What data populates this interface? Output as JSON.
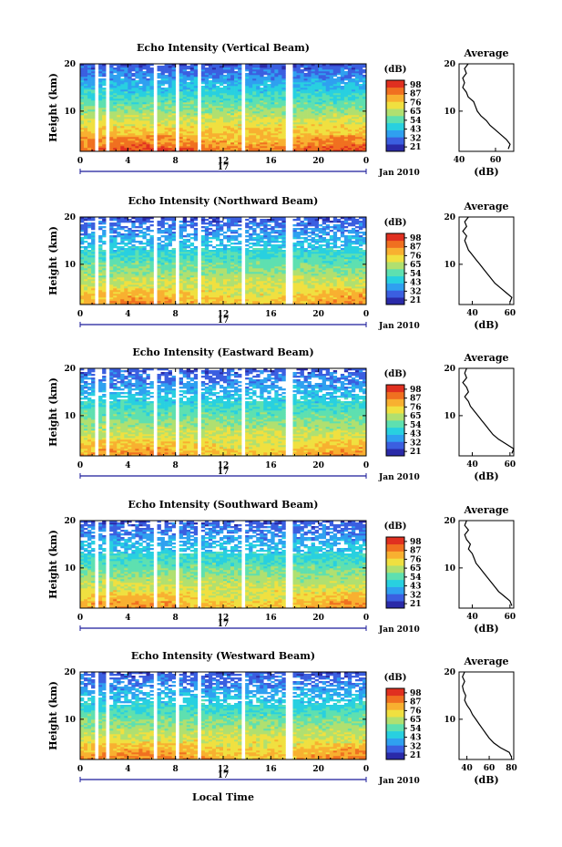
{
  "figure": {
    "xlabel": "Local Time",
    "date_label": "Jan 2010",
    "day_label": "17",
    "ylabel": "Height (km)",
    "colorbar_unit": "(dB)",
    "colorbar_ticks": [
      "21",
      "32",
      "43",
      "54",
      "65",
      "76",
      "87",
      "98"
    ],
    "colormap": [
      "#2a2aa8",
      "#3b5fe0",
      "#2fa0f0",
      "#28d0e0",
      "#5ee0b0",
      "#b0e070",
      "#f0e040",
      "#f8b030",
      "#f07020",
      "#e03020"
    ],
    "gap_color": "#ffffff"
  },
  "chart_data": [
    {
      "type": "heatmap",
      "title": "Echo Intensity (Vertical Beam)",
      "xlabel": "",
      "ylabel": "Height (km)",
      "xlim": [
        0,
        24
      ],
      "ylim": [
        1.5,
        20
      ],
      "x_ticks": [
        "0",
        "4",
        "8",
        "12",
        "16",
        "20",
        "0"
      ],
      "y_ticks": [
        "10",
        "20"
      ],
      "colorbar_range": [
        21,
        98
      ],
      "gaps_hours": [
        1.3,
        2.4,
        6.2,
        8.3,
        10.1,
        13.7,
        17.3,
        17.6
      ],
      "profile": {
        "title": "Average",
        "xlabel": "(dB)",
        "x_ticks": [
          "40",
          "60"
        ],
        "xlim": [
          40,
          70
        ],
        "heights_km": [
          2,
          3,
          4,
          5,
          6,
          7,
          8,
          9,
          10,
          11,
          12,
          13,
          14,
          15,
          16,
          17,
          18,
          19,
          20
        ],
        "values_db": [
          67,
          68,
          66,
          63,
          60,
          57,
          55,
          52,
          50,
          49,
          48,
          45,
          44,
          42,
          43,
          42,
          44,
          43,
          45
        ]
      }
    },
    {
      "type": "heatmap",
      "title": "Echo Intensity (Northward Beam)",
      "xlabel": "",
      "ylabel": "Height (km)",
      "xlim": [
        0,
        24
      ],
      "ylim": [
        1.5,
        20
      ],
      "x_ticks": [
        "0",
        "4",
        "8",
        "12",
        "16",
        "20",
        "0"
      ],
      "y_ticks": [
        "10",
        "20"
      ],
      "colorbar_range": [
        21,
        98
      ],
      "gaps_hours": [
        1.3,
        2.4,
        6.2,
        8.3,
        10.1,
        13.7,
        17.3,
        17.6
      ],
      "profile": {
        "title": "Average",
        "xlabel": "(dB)",
        "x_ticks": [
          "40",
          "60"
        ],
        "xlim": [
          33,
          62
        ],
        "heights_km": [
          2,
          3,
          4,
          5,
          6,
          7,
          8,
          9,
          10,
          11,
          12,
          13,
          14,
          15,
          16,
          17,
          18,
          19,
          20
        ],
        "values_db": [
          60,
          61,
          58,
          55,
          52,
          50,
          48,
          46,
          44,
          42,
          40,
          38,
          37,
          36,
          37,
          35,
          37,
          36,
          38
        ]
      }
    },
    {
      "type": "heatmap",
      "title": "Echo Intensity (Eastward Beam)",
      "xlabel": "",
      "ylabel": "Height (km)",
      "xlim": [
        0,
        24
      ],
      "ylim": [
        1.5,
        20
      ],
      "x_ticks": [
        "0",
        "4",
        "8",
        "12",
        "16",
        "20",
        "0"
      ],
      "y_ticks": [
        "10",
        "20"
      ],
      "colorbar_range": [
        21,
        98
      ],
      "gaps_hours": [
        1.3,
        2.4,
        6.2,
        8.3,
        10.1,
        13.7,
        17.3,
        17.6
      ],
      "profile": {
        "title": "Average",
        "xlabel": "(dB)",
        "x_ticks": [
          "40",
          "60"
        ],
        "xlim": [
          33,
          62
        ],
        "heights_km": [
          2,
          3,
          4,
          5,
          6,
          7,
          8,
          9,
          10,
          11,
          12,
          13,
          14,
          15,
          16,
          17,
          18,
          19,
          20
        ],
        "values_db": [
          61,
          62,
          58,
          54,
          51,
          49,
          47,
          45,
          43,
          41,
          39,
          38,
          36,
          38,
          37,
          35,
          37,
          36,
          37
        ]
      }
    },
    {
      "type": "heatmap",
      "title": "Echo Intensity (Southward Beam)",
      "xlabel": "",
      "ylabel": "Height (km)",
      "xlim": [
        0,
        24
      ],
      "ylim": [
        1.5,
        20
      ],
      "x_ticks": [
        "0",
        "4",
        "8",
        "12",
        "16",
        "20",
        "0"
      ],
      "y_ticks": [
        "10",
        "20"
      ],
      "colorbar_range": [
        21,
        98
      ],
      "gaps_hours": [
        1.3,
        2.4,
        6.2,
        8.3,
        10.1,
        13.7,
        17.3,
        17.6
      ],
      "profile": {
        "title": "Average",
        "xlabel": "(dB)",
        "x_ticks": [
          "40",
          "60"
        ],
        "xlim": [
          33,
          62
        ],
        "heights_km": [
          2,
          3,
          4,
          5,
          6,
          7,
          8,
          9,
          10,
          11,
          12,
          13,
          14,
          15,
          16,
          17,
          18,
          19,
          20
        ],
        "values_db": [
          61,
          60,
          57,
          54,
          52,
          50,
          48,
          46,
          44,
          42,
          41,
          40,
          38,
          39,
          37,
          36,
          38,
          36,
          37
        ]
      }
    },
    {
      "type": "heatmap",
      "title": "Echo Intensity (Westward Beam)",
      "xlabel": "Local Time",
      "ylabel": "Height (km)",
      "xlim": [
        0,
        24
      ],
      "ylim": [
        1.5,
        20
      ],
      "x_ticks": [
        "0",
        "4",
        "8",
        "12",
        "16",
        "20",
        "0"
      ],
      "y_ticks": [
        "10",
        "20"
      ],
      "colorbar_range": [
        21,
        98
      ],
      "gaps_hours": [
        1.3,
        2.4,
        6.2,
        8.3,
        10.1,
        13.7,
        17.3,
        17.6
      ],
      "profile": {
        "title": "Average",
        "xlabel": "(dB)",
        "x_ticks": [
          "40",
          "60",
          "80"
        ],
        "xlim": [
          33,
          82
        ],
        "heights_km": [
          2,
          3,
          4,
          5,
          6,
          7,
          8,
          9,
          10,
          11,
          12,
          13,
          14,
          15,
          16,
          17,
          18,
          19,
          20
        ],
        "values_db": [
          80,
          78,
          70,
          64,
          60,
          57,
          54,
          51,
          48,
          45,
          43,
          40,
          38,
          39,
          37,
          36,
          38,
          36,
          38
        ]
      }
    }
  ]
}
